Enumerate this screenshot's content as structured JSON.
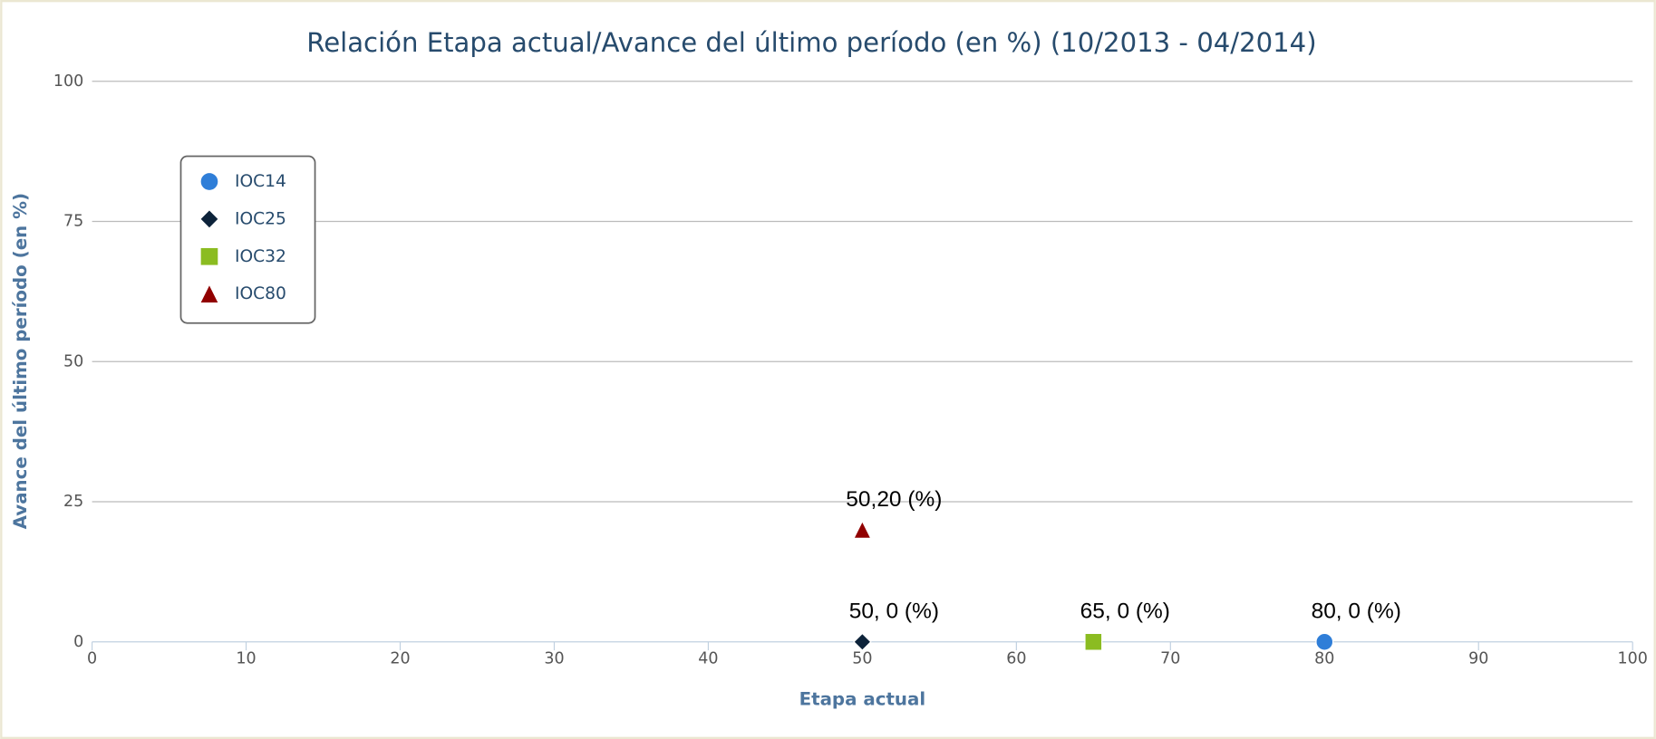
{
  "chart_data": {
    "type": "scatter",
    "title": "Relación Etapa actual/Avance del último período (en %) (10/2013 - 04/2014)",
    "x_label": "Etapa actual",
    "y_label": "Avance del último período (en %)",
    "xlim": [
      0,
      100
    ],
    "xticks": [
      0,
      10,
      20,
      30,
      40,
      50,
      60,
      70,
      80,
      90,
      100
    ],
    "ylim": [
      0,
      100
    ],
    "yticks": [
      0,
      25,
      50,
      75,
      100
    ],
    "grid": true,
    "legend": "upper left",
    "series": [
      {
        "name": "IOC14",
        "color": "#2f7ed8",
        "marker": "circle",
        "x": [
          80
        ],
        "values": [
          0
        ],
        "value_labels": [
          "80, 0 (%)"
        ]
      },
      {
        "name": "IOC25",
        "color": "#0d233a",
        "marker": "diamond",
        "x": [
          50
        ],
        "values": [
          0
        ],
        "value_labels": [
          "50, 0 (%)"
        ]
      },
      {
        "name": "IOC32",
        "color": "#8bbc21",
        "marker": "square",
        "x": [
          65
        ],
        "values": [
          0
        ],
        "value_labels": [
          "65, 0 (%)"
        ]
      },
      {
        "name": "IOC80",
        "color": "#910000",
        "marker": "triangle",
        "x": [
          50
        ],
        "values": [
          20
        ],
        "value_labels": [
          "50,20 (%)"
        ]
      }
    ]
  }
}
